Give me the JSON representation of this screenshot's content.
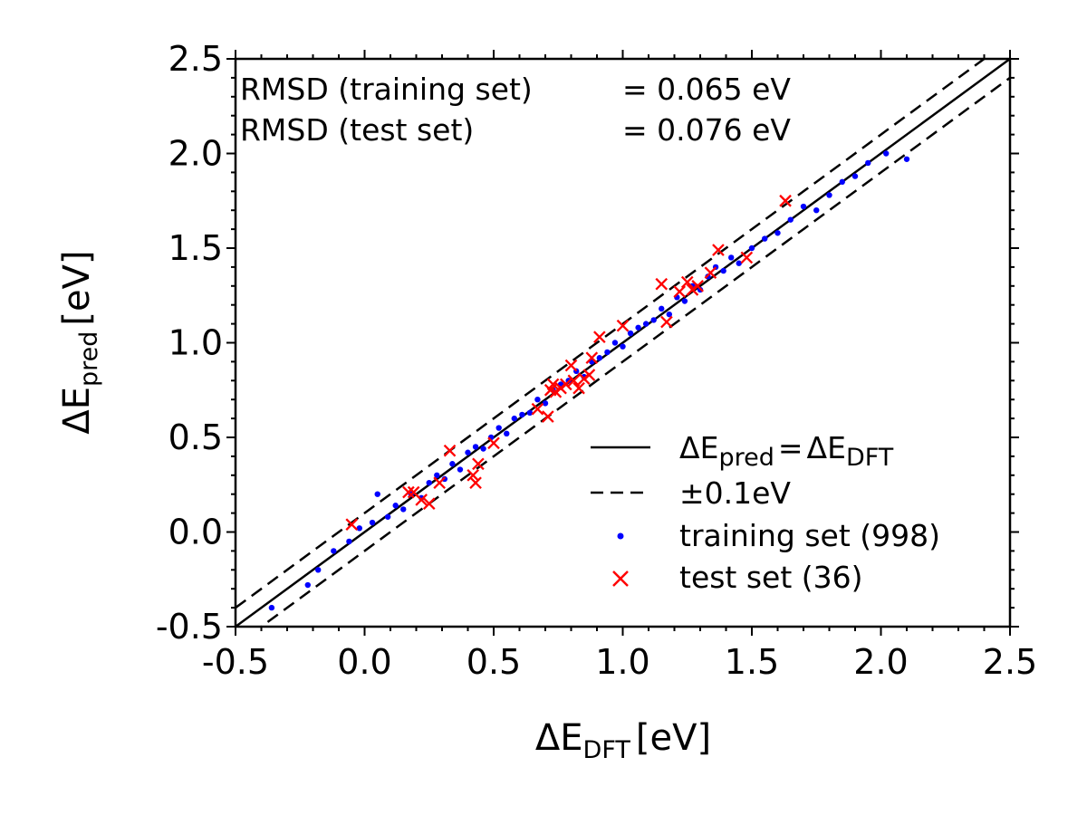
{
  "chart_data": {
    "type": "scatter",
    "xlim": [
      -0.5,
      2.5
    ],
    "ylim": [
      -0.5,
      2.5
    ],
    "xticks": [
      "-0.5",
      "0.0",
      "0.5",
      "1.0",
      "1.5",
      "2.0",
      "2.5"
    ],
    "yticks": [
      "-0.5",
      "0.0",
      "0.5",
      "1.0",
      "1.5",
      "2.0",
      "2.5"
    ],
    "xlabel": {
      "symbol": "ΔE",
      "sub": "DFT",
      "unit": "[eV]"
    },
    "ylabel": {
      "symbol": "ΔE",
      "sub": "pred",
      "unit": "[eV]"
    },
    "annotations": {
      "line1_left": "RMSD (training set)",
      "line1_right": "= 0.065 eV",
      "line2_left": "RMSD (test set)",
      "line2_right": "= 0.076 eV"
    },
    "reference_lines": [
      {
        "name": "identity",
        "offset": 0.0,
        "style": "solid"
      },
      {
        "name": "upper",
        "offset": 0.1,
        "style": "dashed"
      },
      {
        "name": "lower",
        "offset": -0.1,
        "style": "dashed"
      }
    ],
    "legend": {
      "placement": "lower-right",
      "entries": {
        "identity": {
          "lhs": "ΔE",
          "lhs_sub": "pred",
          "eq": "=",
          "rhs": "ΔE",
          "rhs_sub": "DFT"
        },
        "band": "±0.1eV",
        "training": "training set (998)",
        "test": "test set (36)"
      }
    },
    "series": [
      {
        "name": "training set (998)",
        "marker": "dot",
        "color": "#0000ff",
        "x": [
          -0.36,
          -0.22,
          -0.18,
          -0.12,
          -0.06,
          -0.02,
          0.03,
          0.05,
          0.09,
          0.12,
          0.15,
          0.18,
          0.22,
          0.25,
          0.28,
          0.31,
          0.34,
          0.37,
          0.4,
          0.43,
          0.46,
          0.49,
          0.52,
          0.55,
          0.58,
          0.61,
          0.64,
          0.67,
          0.7,
          0.73,
          0.76,
          0.79,
          0.82,
          0.85,
          0.88,
          0.91,
          0.94,
          0.97,
          1.0,
          1.03,
          1.06,
          1.09,
          1.12,
          1.15,
          1.18,
          1.21,
          1.24,
          1.27,
          1.3,
          1.33,
          1.36,
          1.39,
          1.42,
          1.45,
          1.5,
          1.55,
          1.6,
          1.65,
          1.7,
          1.75,
          1.8,
          1.85,
          1.9,
          1.95,
          2.02,
          2.1
        ],
        "y": [
          -0.4,
          -0.28,
          -0.2,
          -0.1,
          -0.05,
          0.02,
          0.05,
          0.2,
          0.08,
          0.14,
          0.12,
          0.2,
          0.18,
          0.26,
          0.3,
          0.28,
          0.36,
          0.33,
          0.42,
          0.45,
          0.44,
          0.5,
          0.55,
          0.52,
          0.6,
          0.62,
          0.63,
          0.7,
          0.68,
          0.75,
          0.78,
          0.8,
          0.85,
          0.82,
          0.9,
          0.92,
          0.95,
          1.0,
          0.98,
          1.05,
          1.08,
          1.1,
          1.12,
          1.18,
          1.15,
          1.24,
          1.22,
          1.3,
          1.28,
          1.35,
          1.4,
          1.38,
          1.45,
          1.42,
          1.5,
          1.55,
          1.58,
          1.65,
          1.72,
          1.7,
          1.78,
          1.85,
          1.88,
          1.95,
          2.0,
          1.97
        ]
      },
      {
        "name": "test set (36)",
        "marker": "x",
        "color": "#ff0000",
        "x": [
          -0.05,
          0.17,
          0.19,
          0.22,
          0.25,
          0.29,
          0.33,
          0.42,
          0.43,
          0.44,
          0.5,
          0.67,
          0.71,
          0.72,
          0.73,
          0.74,
          0.76,
          0.78,
          0.8,
          0.81,
          0.83,
          0.85,
          0.88,
          0.91,
          1.0,
          1.15,
          1.17,
          1.22,
          1.25,
          1.27,
          1.29,
          1.34,
          1.37,
          1.48,
          1.63,
          0.87
        ],
        "y": [
          0.04,
          0.21,
          0.21,
          0.17,
          0.15,
          0.26,
          0.43,
          0.3,
          0.26,
          0.36,
          0.47,
          0.65,
          0.61,
          0.75,
          0.78,
          0.74,
          0.76,
          0.78,
          0.88,
          0.8,
          0.76,
          0.81,
          0.92,
          1.03,
          1.09,
          1.31,
          1.11,
          1.27,
          1.32,
          1.28,
          1.3,
          1.37,
          1.49,
          1.45,
          1.75,
          0.83
        ]
      }
    ]
  }
}
